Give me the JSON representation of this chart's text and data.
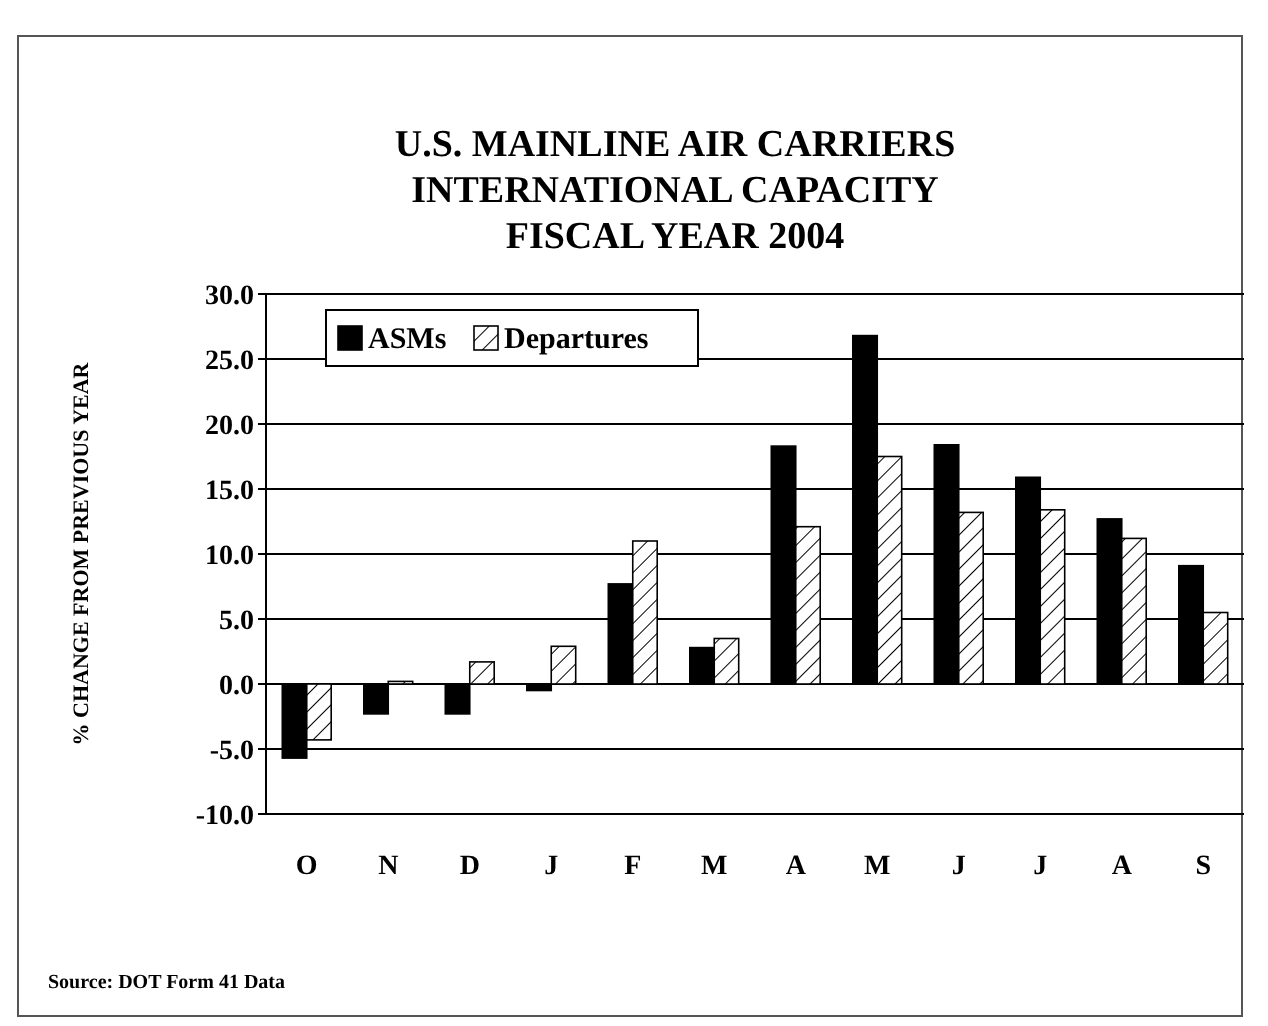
{
  "chart_data": {
    "type": "bar",
    "title": "U.S. MAINLINE AIR CARRIERS\nINTERNATIONAL CAPACITY\nFISCAL YEAR 2004",
    "ylabel": "% CHANGE FROM PREVIOUS YEAR",
    "categories": [
      "O",
      "N",
      "D",
      "J",
      "F",
      "M",
      "A",
      "M",
      "J",
      "J",
      "A",
      "S"
    ],
    "series": [
      {
        "name": "ASMs",
        "color": "#000000",
        "values": [
          -5.7,
          -2.3,
          -2.3,
          -0.5,
          7.7,
          2.8,
          18.3,
          26.8,
          18.4,
          15.9,
          12.7,
          9.1
        ]
      },
      {
        "name": "Departures",
        "color": "#ffffff",
        "values": [
          -4.3,
          0.2,
          1.7,
          2.9,
          11.0,
          3.5,
          12.1,
          17.5,
          13.2,
          13.4,
          11.2,
          5.5
        ]
      }
    ],
    "ylim": [
      -10,
      30
    ],
    "yticks": [
      {
        "value": -10,
        "label": "-10.0"
      },
      {
        "value": -5,
        "label": "-5.0"
      },
      {
        "value": 0,
        "label": "0.0"
      },
      {
        "value": 5,
        "label": "5.0"
      },
      {
        "value": 10,
        "label": "10.0"
      },
      {
        "value": 15,
        "label": "15.0"
      },
      {
        "value": 20,
        "label": "20.0"
      },
      {
        "value": 25,
        "label": "25.0"
      },
      {
        "value": 30,
        "label": "30.0"
      }
    ],
    "grid": "y",
    "legend": "top left",
    "annotations": [
      "Source: DOT Form 41 Data"
    ]
  }
}
